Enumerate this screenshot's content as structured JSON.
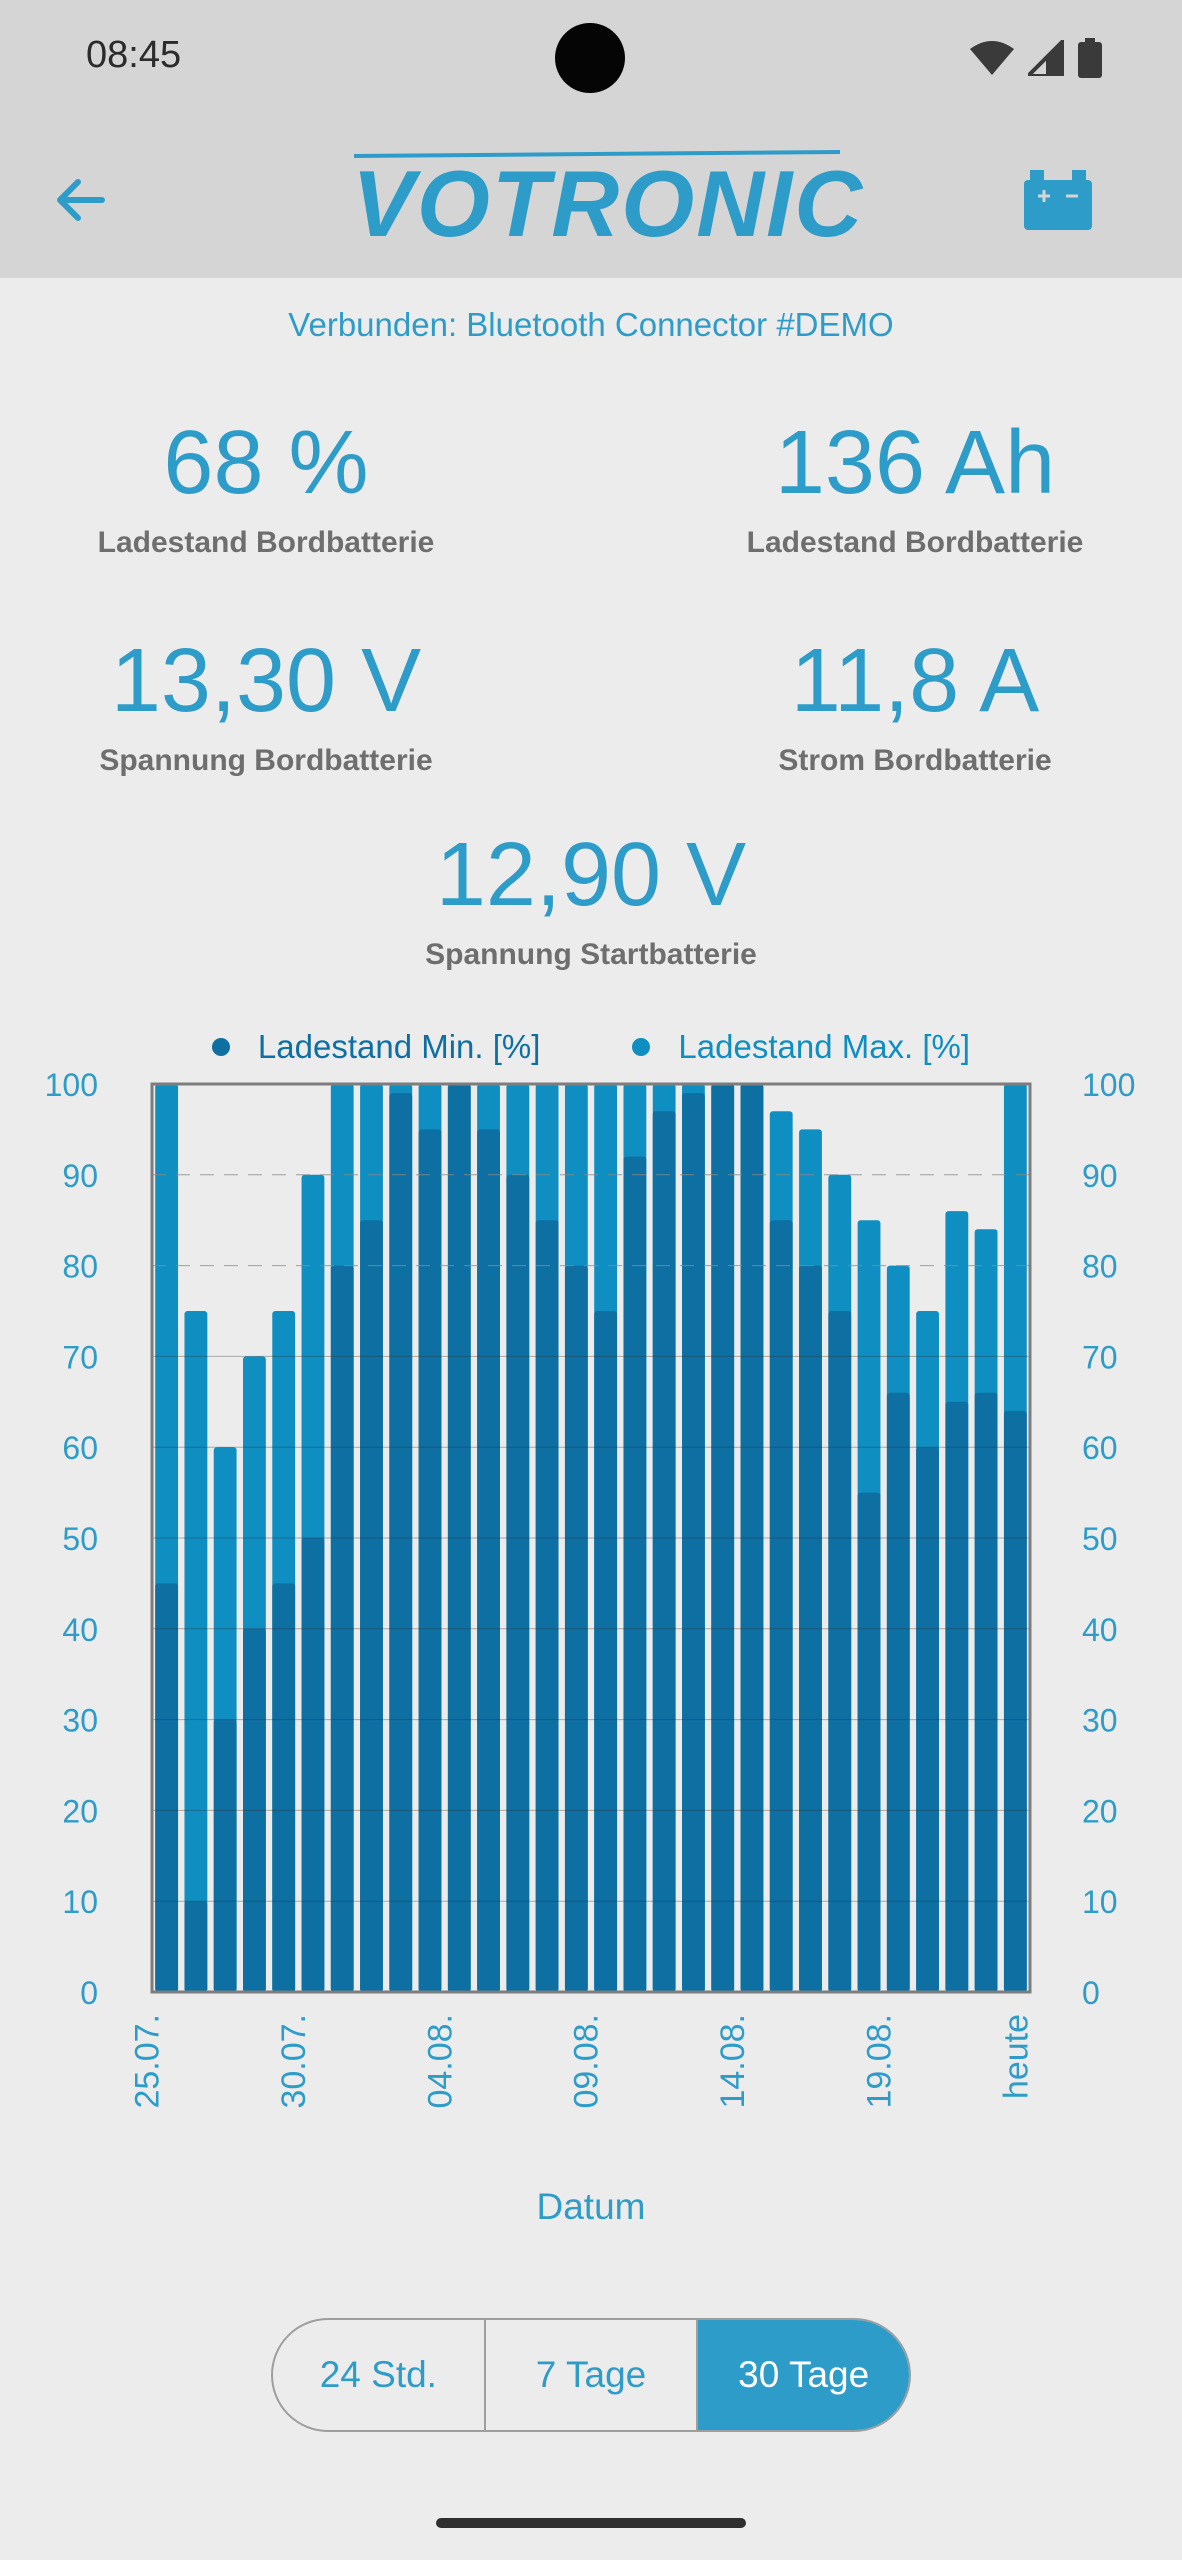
{
  "status_bar": {
    "time": "08:45"
  },
  "header": {
    "logo_text": "VOTRONIC"
  },
  "connection_text": "Verbunden: Bluetooth Connector #DEMO",
  "metrics": [
    {
      "value": "68 %",
      "label": "Ladestand Bordbatterie"
    },
    {
      "value": "136 Ah",
      "label": "Ladestand Bordbatterie"
    },
    {
      "value": "13,30 V",
      "label": "Spannung Bordbatterie"
    },
    {
      "value": "11,8 A",
      "label": "Strom Bordbatterie"
    },
    {
      "value": "12,90 V",
      "label": "Spannung Startbatterie"
    }
  ],
  "time_range": {
    "options": [
      "24 Std.",
      "7 Tage",
      "30 Tage"
    ],
    "selected": "30 Tage"
  },
  "colors": {
    "accent": "#2e9cc8",
    "min_series": "#0e6fa3",
    "max_series": "#0f8ec2"
  },
  "chart_data": {
    "type": "bar",
    "legend": [
      "Ladestand Min. [%]",
      "Ladestand Max. [%]"
    ],
    "xlabel": "Datum",
    "ylim": [
      0,
      100
    ],
    "yticks": [
      0,
      10,
      20,
      30,
      40,
      50,
      60,
      70,
      80,
      90,
      100
    ],
    "xtick_labels": [
      "25.07.",
      "30.07.",
      "04.08.",
      "09.08.",
      "14.08.",
      "19.08.",
      "heute"
    ],
    "xtick_indices": [
      0,
      5,
      10,
      15,
      20,
      25,
      29
    ],
    "series": [
      {
        "name": "Ladestand Min. [%]",
        "values": [
          45,
          10,
          30,
          40,
          45,
          50,
          80,
          85,
          99,
          95,
          100,
          95,
          90,
          85,
          80,
          75,
          92,
          97,
          99,
          100,
          100,
          85,
          80,
          75,
          55,
          66,
          60,
          65,
          66,
          64
        ]
      },
      {
        "name": "Ladestand Max. [%]",
        "values": [
          100,
          75,
          60,
          70,
          75,
          90,
          100,
          100,
          100,
          100,
          100,
          100,
          100,
          100,
          100,
          100,
          100,
          100,
          100,
          100,
          100,
          97,
          95,
          90,
          85,
          80,
          75,
          86,
          84,
          100
        ]
      }
    ],
    "grid": true,
    "dashed_gridlines": [
      80,
      90
    ]
  }
}
